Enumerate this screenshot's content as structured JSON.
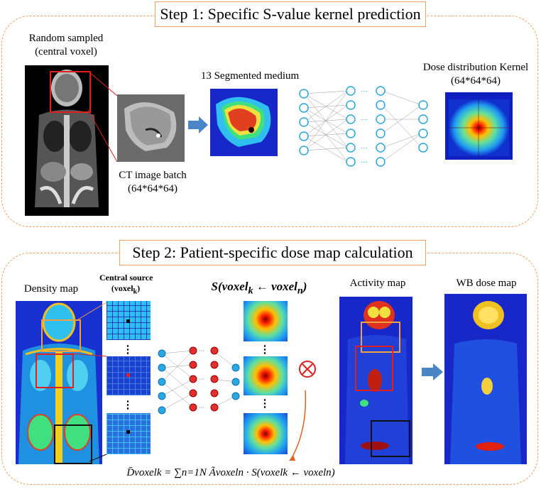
{
  "step1": {
    "title": "Step 1: Specific S-value kernel prediction",
    "random_label_line1": "Random sampled",
    "random_label_line2": "(central voxel)",
    "segmented_label": "13 Segmented medium",
    "kernel_label_line1": "Dose  distribution Kernel",
    "kernel_label_line2": "(64*64*64)",
    "ct_batch_label_line1": "CT image batch",
    "ct_batch_label_line2": "(64*64*64)"
  },
  "step2": {
    "title": "Step 2: Patient-specific dose map calculation",
    "density_label": "Density map",
    "central_source_line1": "Central source",
    "central_source_line2": "(voxel",
    "central_source_sub": "k",
    "central_source_close": ")",
    "svalue_label": "S(voxel",
    "svalue_sub_k": "k",
    "svalue_arrow": " ← voxel",
    "svalue_sub_n": "n",
    "svalue_close": ")",
    "activity_label": "Activity map",
    "wb_label": "WB dose map",
    "dots": "⋮",
    "formula": "D̄voxelk = ∑n=1N Ãvoxeln · S(voxelk ← voxeln)"
  },
  "colors": {
    "panel_border": "#f0a060",
    "arrow_blue": "#4a86c5",
    "box_red": "#e02020",
    "box_orange": "#f0a040",
    "box_black": "#111111",
    "node_cyan": "#2aa8e0",
    "node_red": "#e03030"
  }
}
